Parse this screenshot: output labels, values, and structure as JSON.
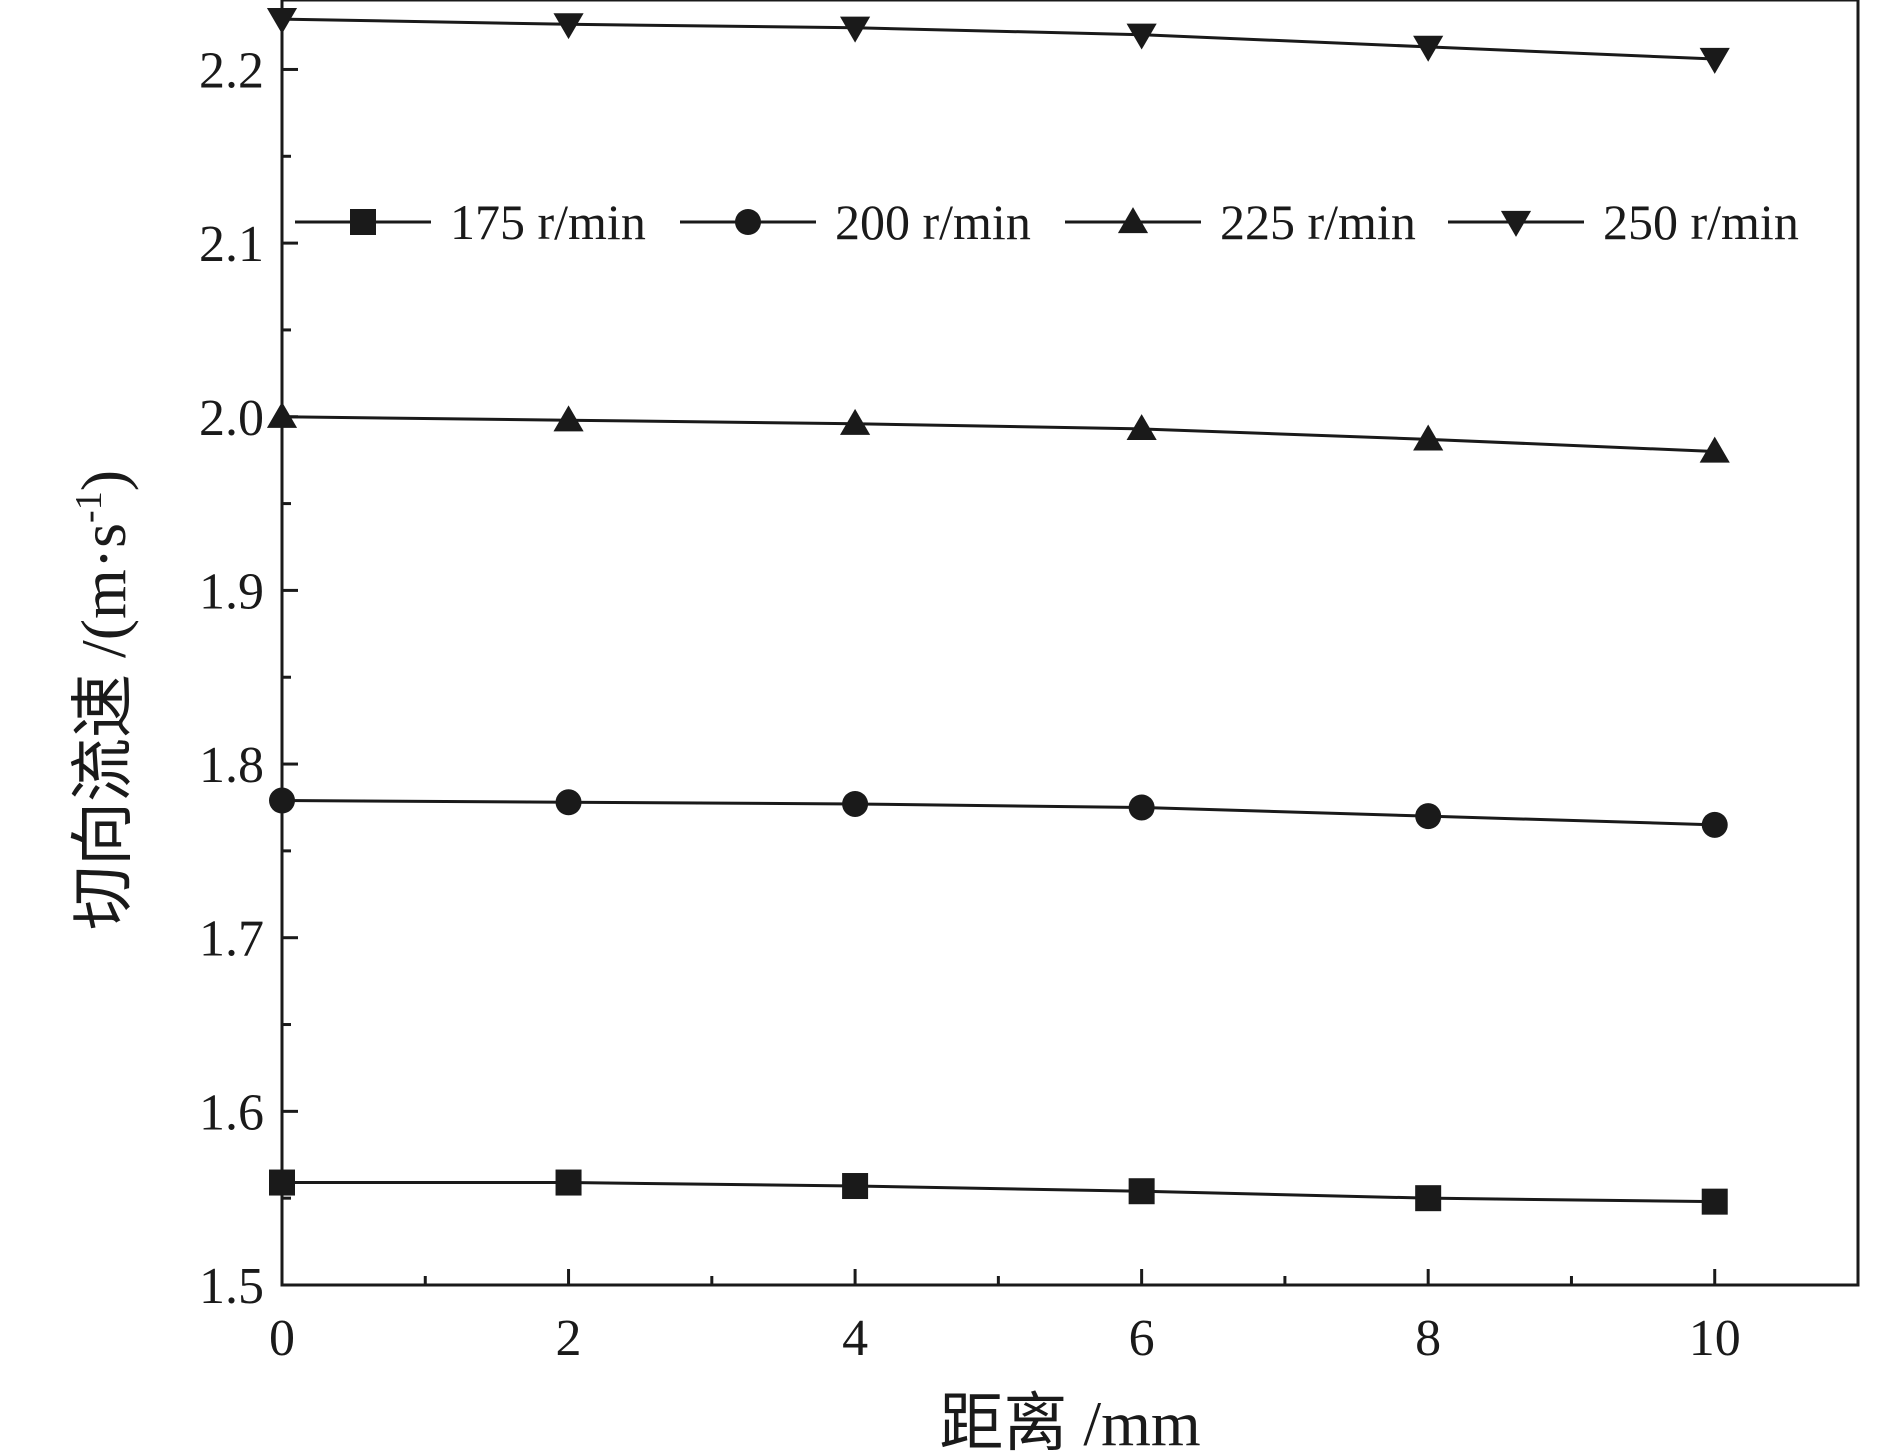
{
  "chart_data": {
    "type": "line",
    "title": "",
    "xlabel": "距离 /mm",
    "ylabel": "切向流速 /(m·s-1)",
    "ylabel_parts": {
      "main": "切向流速 /(m·s",
      "sup": "-1",
      "close": ")"
    },
    "xlim": [
      0,
      11
    ],
    "ylim": [
      1.5,
      2.24
    ],
    "x_ticks": [
      "0",
      "2",
      "4",
      "6",
      "8",
      "10"
    ],
    "y_ticks": [
      "1.5",
      "1.6",
      "1.7",
      "1.8",
      "1.9",
      "2.0",
      "2.1",
      "2.2"
    ],
    "grid": false,
    "legend_position": "top, single row",
    "x": [
      0,
      2,
      4,
      6,
      8,
      10
    ],
    "series": [
      {
        "name": "175 r/min",
        "marker": "square",
        "values": [
          1.559,
          1.559,
          1.557,
          1.554,
          1.55,
          1.548
        ]
      },
      {
        "name": "200 r/min",
        "marker": "circle",
        "values": [
          1.779,
          1.778,
          1.777,
          1.775,
          1.77,
          1.765
        ]
      },
      {
        "name": "225 r/min",
        "marker": "triangle-up",
        "values": [
          2.0,
          1.998,
          1.996,
          1.993,
          1.987,
          1.98
        ]
      },
      {
        "name": "250 r/min",
        "marker": "triangle-down",
        "values": [
          2.229,
          2.226,
          2.224,
          2.22,
          2.213,
          2.206
        ]
      }
    ],
    "colors": {
      "line": "#1a1a1a",
      "marker": "#1a1a1a",
      "axis": "#1a1a1a"
    }
  }
}
